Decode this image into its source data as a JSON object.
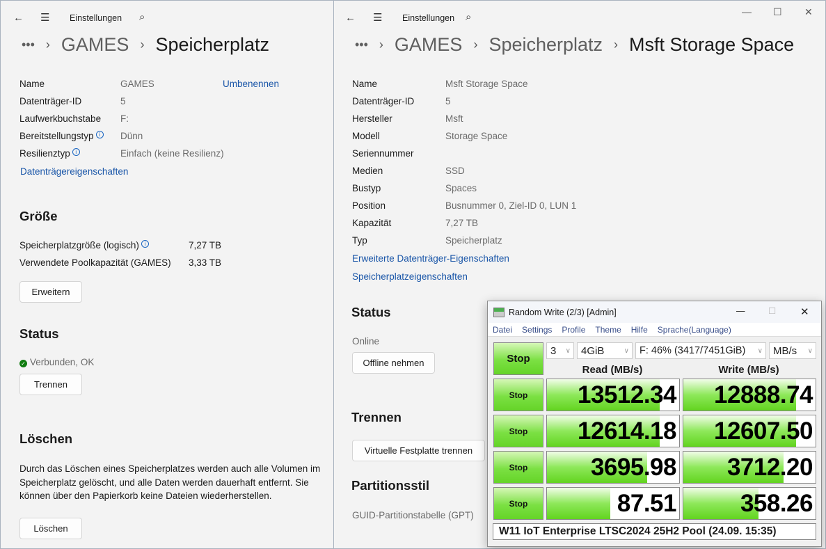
{
  "left": {
    "app_title": "Einstellungen",
    "breadcrumb": [
      "•••",
      "GAMES",
      "Speicherplatz"
    ],
    "props": [
      {
        "label": "Name",
        "value": "GAMES",
        "action": "Umbenennen"
      },
      {
        "label": "Datenträger-ID",
        "value": "5"
      },
      {
        "label": "Laufwerkbuchstabe",
        "value": "F:"
      },
      {
        "label": "Bereitstellungstyp",
        "value": "Dünn",
        "info": true
      },
      {
        "label": "Resilienztyp",
        "value": "Einfach (keine Resilienz)",
        "info": true
      }
    ],
    "props_link": "Datenträgereigenschaften",
    "size": {
      "heading": "Größe",
      "rows": [
        {
          "label": "Speicherplatzgröße (logisch)",
          "value": "7,27 TB",
          "info": true
        },
        {
          "label": "Verwendete Poolkapazität (GAMES)",
          "value": "3,33 TB"
        }
      ],
      "button": "Erweitern"
    },
    "status": {
      "heading": "Status",
      "text": "Verbunden, OK",
      "button": "Trennen"
    },
    "delete": {
      "heading": "Löschen",
      "text": "Durch das Löschen eines Speicherplatzes werden auch alle Volumen im Speicherplatz gelöscht, und alle Daten werden dauerhaft entfernt. Sie können über den Papierkorb keine Dateien wiederherstellen.",
      "button": "Löschen"
    }
  },
  "right": {
    "app_title": "Einstellungen",
    "breadcrumb": [
      "•••",
      "GAMES",
      "Speicherplatz",
      "Msft Storage Space"
    ],
    "props": [
      {
        "label": "Name",
        "value": "Msft Storage Space"
      },
      {
        "label": "Datenträger-ID",
        "value": "5"
      },
      {
        "label": "Hersteller",
        "value": "Msft"
      },
      {
        "label": "Modell",
        "value": "Storage Space"
      },
      {
        "label": "Seriennummer",
        "value": ""
      },
      {
        "label": "Medien",
        "value": "SSD"
      },
      {
        "label": "Bustyp",
        "value": "Spaces"
      },
      {
        "label": "Position",
        "value": "Busnummer 0, Ziel-ID 0, LUN 1"
      },
      {
        "label": "Kapazität",
        "value": "7,27 TB"
      },
      {
        "label": "Typ",
        "value": "Speicherplatz"
      }
    ],
    "links": [
      "Erweiterte Datenträger-Eigenschaften",
      "Speicherplatzeigenschaften"
    ],
    "status": {
      "heading": "Status",
      "text": "Online",
      "button": "Offline nehmen"
    },
    "disconnect": {
      "heading": "Trennen",
      "button": "Virtuelle Festplatte trennen"
    },
    "partition": {
      "heading": "Partitionsstil",
      "text": "GUID-Partitionstabelle (GPT)"
    }
  },
  "cdm": {
    "title": "Random Write (2/3) [Admin]",
    "menu": [
      "Datei",
      "Settings",
      "Profile",
      "Theme",
      "Hilfe",
      "Sprache(Language)"
    ],
    "main_button": "Stop",
    "count": "3",
    "size": "4GiB",
    "drive": "F: 46% (3417/7451GiB)",
    "unit": "MB/s",
    "read_header": "Read (MB/s)",
    "write_header": "Write (MB/s)",
    "rows": [
      {
        "button": "Stop",
        "read": "13512.34",
        "write": "12888.74",
        "read_fill": 85.5,
        "write_fill": 85
      },
      {
        "button": "Stop",
        "read": "12614.18",
        "write": "12607.50",
        "read_fill": 85,
        "write_fill": 85
      },
      {
        "button": "Stop",
        "read": "3695.98",
        "write": "3712.20",
        "read_fill": 76,
        "write_fill": 76
      },
      {
        "button": "Stop",
        "read": "87.51",
        "write": "358.26",
        "read_fill": 48,
        "write_fill": 57
      }
    ],
    "comment": "W11 IoT Enterprise LTSC2024 25H2 Pool (24.09. 15:35)",
    "accent": "#65d428"
  }
}
